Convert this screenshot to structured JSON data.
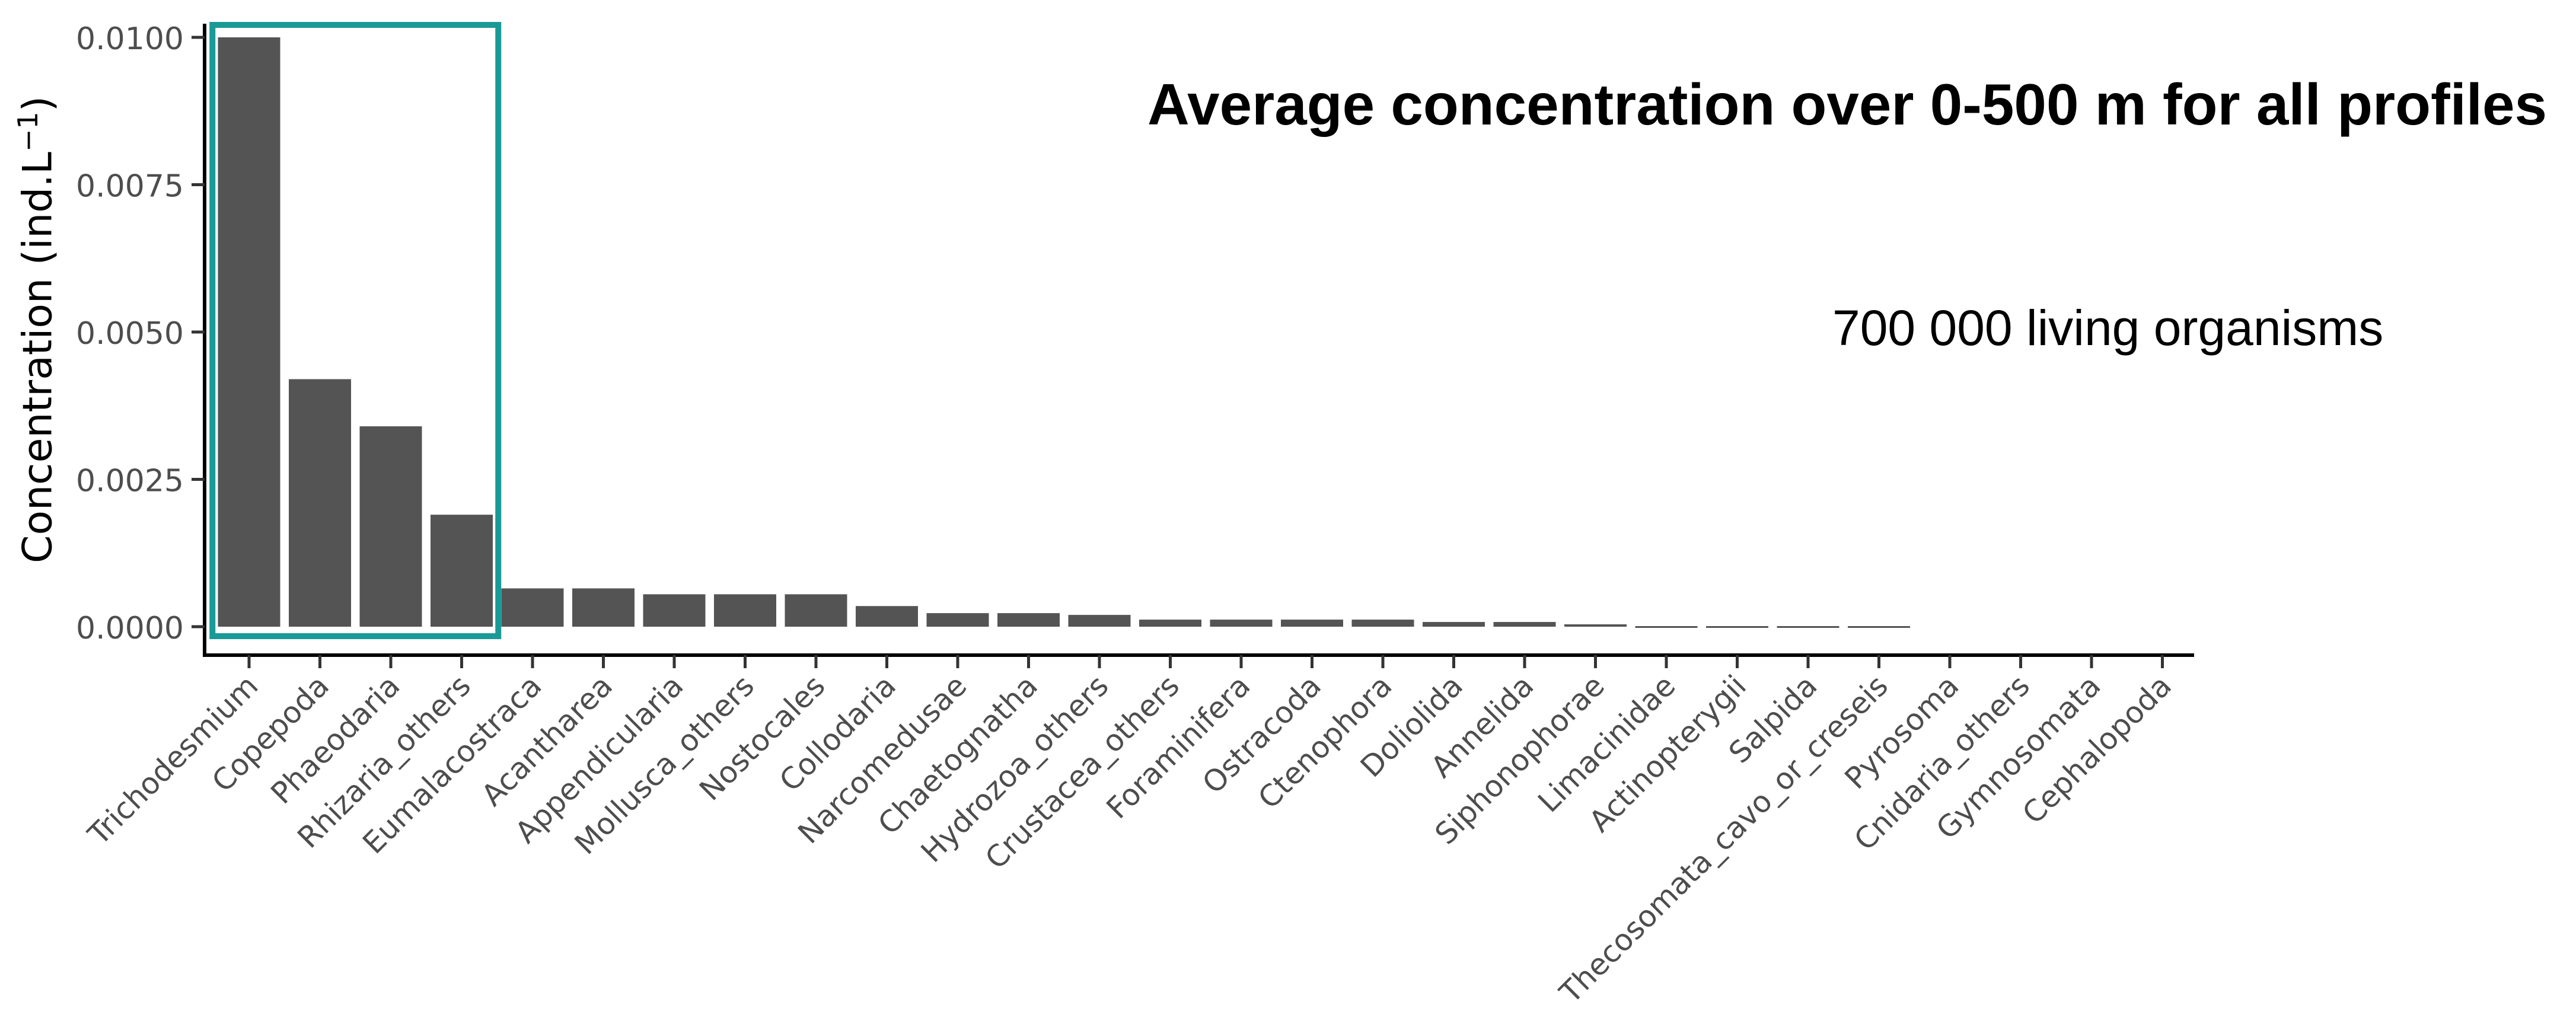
{
  "title": "Average concentration over 0-500 m for all profiles",
  "subtitle": "700 000 living organisms",
  "chart_data": {
    "type": "bar",
    "ylabel": "Concentration (ind.L⁻¹)",
    "ylabel_parts": {
      "text": "Concentration (ind.L",
      "exponent": "−1",
      "close": ")"
    },
    "ylim": [
      0,
      0.0105
    ],
    "yticks": [
      "0.0000",
      "0.0025",
      "0.0050",
      "0.0075",
      "0.0100"
    ],
    "ytick_values": [
      0,
      0.0025,
      0.005,
      0.0075,
      0.01
    ],
    "grid": false,
    "bar_color": "#545454",
    "highlight_color": "#1a9a96",
    "highlight_categories": [
      "Trichodesmium",
      "Copepoda",
      "Phaeodaria",
      "Rhizaria_others"
    ],
    "categories": [
      "Trichodesmium",
      "Copepoda",
      "Phaeodaria",
      "Rhizaria_others",
      "Eumalacostraca",
      "Acantharea",
      "Appendicularia",
      "Mollusca_others",
      "Nostocales",
      "Collodaria",
      "Narcomedusae",
      "Chaetognatha",
      "Hydrozoa_others",
      "Crustacea_others",
      "Foraminifera",
      "Ostracoda",
      "Ctenophora",
      "Doliolida",
      "Annelida",
      "Siphonophorae",
      "Limacinidae",
      "Actinopterygii",
      "Salpida",
      "Thecosomata_cavo_or_creseis",
      "Pyrosoma",
      "Cnidaria_others",
      "Gymnosomata",
      "Cephalopoda"
    ],
    "values": [
      0.01,
      0.0042,
      0.0034,
      0.0019,
      0.00065,
      0.00065,
      0.00055,
      0.00055,
      0.00055,
      0.00035,
      0.00023,
      0.00023,
      0.0002,
      0.00012,
      0.00012,
      0.00012,
      0.00012,
      8e-05,
      8e-05,
      4e-05,
      1e-05,
      1e-05,
      1e-05,
      1e-05,
      0,
      0,
      0,
      0
    ]
  }
}
